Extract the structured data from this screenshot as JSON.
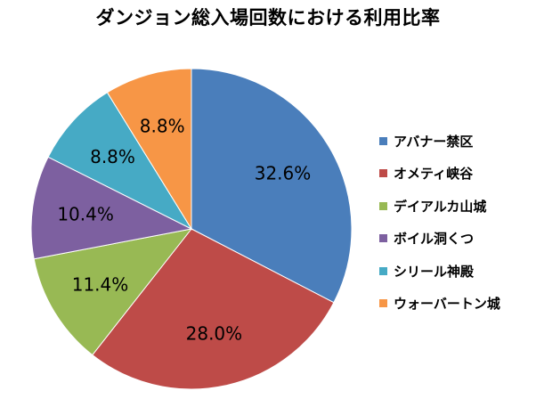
{
  "chart_data": {
    "type": "pie",
    "title": "ダンジョン総入場回数における利用比率",
    "categories": [
      "アバナー禁区",
      "オメティ峡谷",
      "デイアルカ山城",
      "ボイル洞くつ",
      "シリール神殿",
      "ウォーバートン城"
    ],
    "values": [
      32.6,
      28.0,
      11.4,
      10.4,
      8.8,
      8.8
    ],
    "labels": [
      "32.6%",
      "28.0%",
      "11.4%",
      "10.4%",
      "8.8%",
      "8.8%"
    ],
    "colors": [
      "#4A7EBB",
      "#BE4B48",
      "#98B954",
      "#7D60A0",
      "#46AAC5",
      "#F79646"
    ],
    "start_angle": "12 o'clock",
    "direction": "clockwise",
    "legend_position": "right"
  }
}
